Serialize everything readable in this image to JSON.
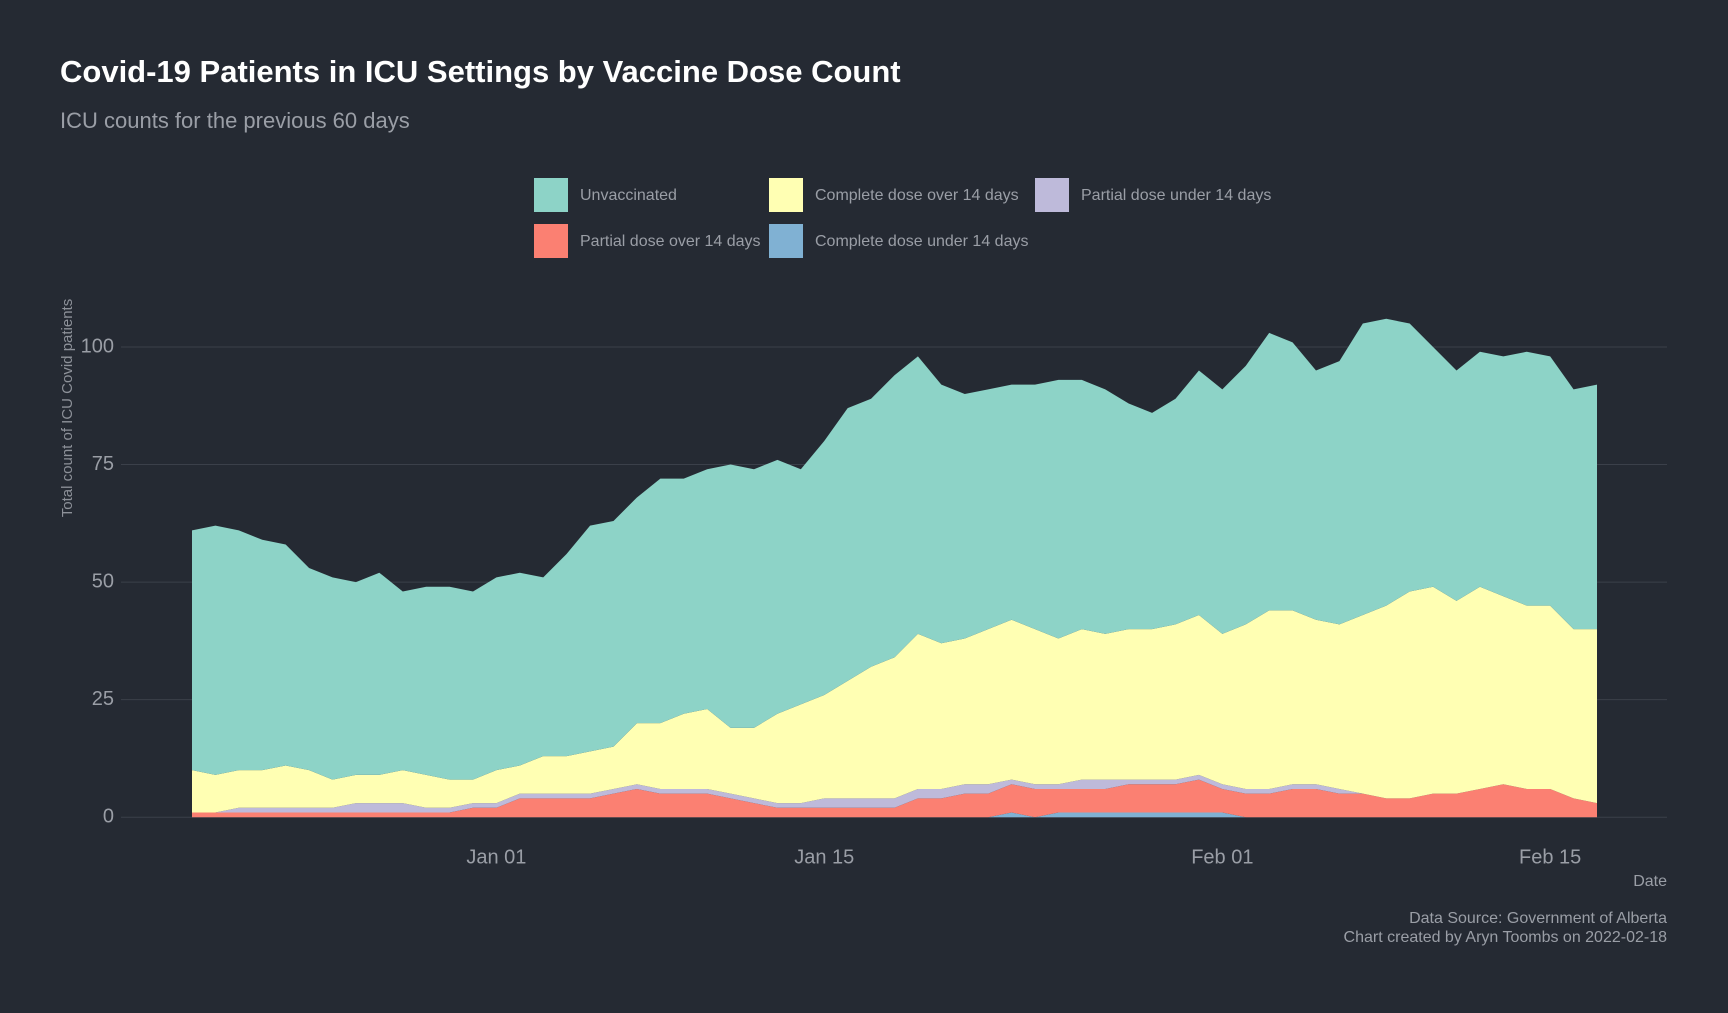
{
  "chart_data": {
    "type": "stacked_area",
    "title": "Covid-19 Patients in ICU Settings by Vaccine Dose Count",
    "subtitle": "ICU counts for the previous 60 days",
    "y_label": "Total count of ICU Covid patients",
    "x_label": "Date",
    "caption": [
      "Data Source: Government of Alberta",
      "Chart created by Aryn Toombs on 2022-02-18"
    ],
    "legend": "top",
    "grid": true,
    "x": [
      "Dec 19",
      "Dec 20",
      "Dec 21",
      "Dec 22",
      "Dec 23",
      "Dec 24",
      "Dec 25",
      "Dec 26",
      "Dec 27",
      "Dec 28",
      "Dec 29",
      "Dec 30",
      "Dec 31",
      "Jan 01",
      "Jan 02",
      "Jan 03",
      "Jan 04",
      "Jan 05",
      "Jan 06",
      "Jan 07",
      "Jan 08",
      "Jan 09",
      "Jan 10",
      "Jan 11",
      "Jan 12",
      "Jan 13",
      "Jan 14",
      "Jan 15",
      "Jan 16",
      "Jan 17",
      "Jan 18",
      "Jan 19",
      "Jan 20",
      "Jan 21",
      "Jan 22",
      "Jan 23",
      "Jan 24",
      "Jan 25",
      "Jan 26",
      "Jan 27",
      "Jan 28",
      "Jan 29",
      "Jan 30",
      "Jan 31",
      "Feb 01",
      "Feb 02",
      "Feb 03",
      "Feb 04",
      "Feb 05",
      "Feb 06",
      "Feb 07",
      "Feb 08",
      "Feb 09",
      "Feb 10",
      "Feb 11",
      "Feb 12",
      "Feb 13",
      "Feb 14",
      "Feb 15",
      "Feb 16",
      "Feb 17"
    ],
    "xticks": [
      "Jan 01",
      "Jan 15",
      "Feb 01",
      "Feb 15"
    ],
    "ylim": [
      -4,
      110
    ],
    "yticks": [
      0,
      25,
      50,
      75,
      100
    ],
    "series": [
      {
        "name": "Unvaccinated",
        "color": "#8dd3c7",
        "values": [
          51,
          53,
          51,
          49,
          47,
          43,
          43,
          41,
          43,
          38,
          40,
          41,
          40,
          41,
          41,
          38,
          43,
          48,
          48,
          48,
          52,
          50,
          51,
          56,
          55,
          54,
          50,
          54,
          58,
          57,
          60,
          59,
          55,
          52,
          51,
          50,
          52,
          55,
          53,
          52,
          48,
          46,
          48,
          52,
          52,
          55,
          59,
          57,
          53,
          56,
          62,
          61,
          57,
          51,
          49,
          50,
          51,
          54,
          53,
          51,
          52
        ]
      },
      {
        "name": "Complete dose over 14 days",
        "color": "#ffffb3",
        "values": [
          9,
          8,
          8,
          8,
          9,
          8,
          6,
          6,
          6,
          7,
          7,
          6,
          5,
          7,
          6,
          8,
          8,
          9,
          9,
          13,
          14,
          16,
          17,
          14,
          15,
          19,
          21,
          22,
          25,
          28,
          30,
          33,
          31,
          31,
          33,
          34,
          33,
          31,
          32,
          31,
          32,
          32,
          33,
          34,
          32,
          35,
          38,
          37,
          35,
          35,
          38,
          41,
          44,
          44,
          41,
          43,
          40,
          39,
          39,
          36,
          37
        ]
      },
      {
        "name": "Partial dose under 14 days",
        "color": "#bebada",
        "values": [
          0,
          0,
          1,
          1,
          1,
          1,
          1,
          2,
          2,
          2,
          1,
          1,
          1,
          1,
          1,
          1,
          1,
          1,
          1,
          1,
          1,
          1,
          1,
          1,
          1,
          1,
          1,
          2,
          2,
          2,
          2,
          2,
          2,
          2,
          2,
          1,
          1,
          1,
          2,
          2,
          1,
          1,
          1,
          1,
          1,
          1,
          1,
          1,
          1,
          1,
          0,
          0,
          0,
          0,
          0,
          0,
          0,
          0,
          0,
          0,
          0
        ]
      },
      {
        "name": "Partial dose over 14 days",
        "color": "#fb8072",
        "values": [
          1,
          1,
          1,
          1,
          1,
          1,
          1,
          1,
          1,
          1,
          1,
          1,
          2,
          2,
          4,
          4,
          4,
          4,
          5,
          6,
          5,
          5,
          5,
          4,
          3,
          2,
          2,
          2,
          2,
          2,
          2,
          4,
          4,
          5,
          5,
          6,
          6,
          5,
          5,
          5,
          6,
          6,
          6,
          7,
          5,
          5,
          5,
          6,
          6,
          5,
          5,
          4,
          4,
          5,
          5,
          6,
          7,
          6,
          6,
          4,
          3
        ]
      },
      {
        "name": "Complete dose under 14 days",
        "color": "#80b1d3",
        "values": [
          0,
          0,
          0,
          0,
          0,
          0,
          0,
          0,
          0,
          0,
          0,
          0,
          0,
          0,
          0,
          0,
          0,
          0,
          0,
          0,
          0,
          0,
          0,
          0,
          0,
          0,
          0,
          0,
          0,
          0,
          0,
          0,
          0,
          0,
          0,
          1,
          0,
          1,
          1,
          1,
          1,
          1,
          1,
          1,
          1,
          0,
          0,
          0,
          0,
          0,
          0,
          0,
          0,
          0,
          0,
          0,
          0,
          0,
          0,
          0,
          0
        ]
      }
    ]
  }
}
